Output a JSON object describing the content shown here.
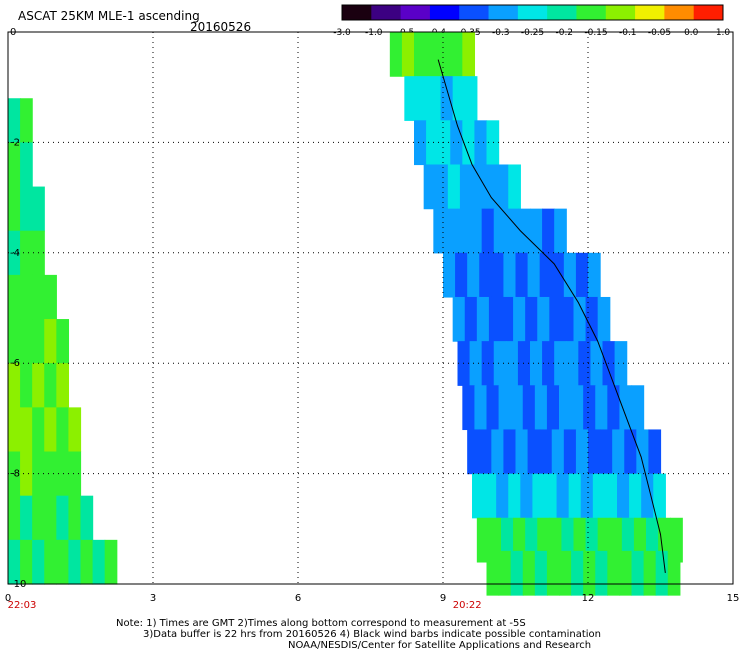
{
  "header": {
    "title": "ASCAT 25KM MLE-1 ascending",
    "date": "20160526"
  },
  "colorbar": {
    "labels": [
      "-3.0",
      "-1.0",
      "-0.5",
      "-0.4",
      "-0.35",
      "-0.3",
      "-0.25",
      "-0.2",
      "-0.15",
      "-0.1",
      "-0.05",
      "0.0",
      "1.0"
    ],
    "colors": [
      "#1a0010",
      "#3c0082",
      "#5a00c8",
      "#0000ff",
      "#0a50ff",
      "#0aa0ff",
      "#00e6e6",
      "#00e6a0",
      "#32f032",
      "#8cf000",
      "#f0f000",
      "#ff8c00",
      "#ff1e00"
    ]
  },
  "notes": {
    "line1": "Note: 1) Times are GMT 2)Times along bottom correspond to measurement at -5S",
    "line2": "3)Data buffer is 22 hrs from 20160526 4) Black wind barbs indicate possible contamination",
    "line3": "NOAA/NESDIS/Center for Satellite Applications and Research"
  },
  "chart_data": {
    "type": "heatmap",
    "title": "ASCAT 25KM MLE-1 ascending",
    "subtitle": "20160526",
    "xlim": [
      0,
      15
    ],
    "ylim": [
      -10,
      0
    ],
    "x_ticks": [
      "0",
      "3",
      "6",
      "9",
      "12",
      "15"
    ],
    "y_ticks": [
      "0",
      "-2",
      "-4",
      "-6",
      "-8",
      "-10"
    ],
    "time_labels": [
      {
        "x": 0,
        "label": "22:03"
      },
      {
        "x": 9.5,
        "label": "20:22"
      }
    ],
    "grid": true,
    "swaths": [
      {
        "name": "west",
        "rows": [
          {
            "y": -1.6,
            "x0": 0,
            "x1": 0.3,
            "v": -0.2
          },
          {
            "y": -2.4,
            "x0": 0,
            "x1": 0.45,
            "v": -0.2
          },
          {
            "y": -3.2,
            "x0": 0,
            "x1": 0.6,
            "v": -0.22
          },
          {
            "y": -4.0,
            "x0": 0,
            "x1": 0.75,
            "v": -0.2
          },
          {
            "y": -4.8,
            "x0": 0,
            "x1": 0.9,
            "v": -0.18
          },
          {
            "y": -5.6,
            "x0": 0,
            "x1": 1.05,
            "v": -0.17
          },
          {
            "y": -6.4,
            "x0": 0,
            "x1": 1.2,
            "v": -0.14
          },
          {
            "y": -7.2,
            "x0": 0,
            "x1": 1.35,
            "v": -0.15
          },
          {
            "y": -8.0,
            "x0": 0,
            "x1": 1.5,
            "v": -0.17
          },
          {
            "y": -8.8,
            "x0": 0,
            "x1": 1.7,
            "v": -0.2
          },
          {
            "y": -9.6,
            "x0": 0,
            "x1": 2.1,
            "v": -0.19
          }
        ]
      },
      {
        "name": "east",
        "rows": [
          {
            "y": -0.4,
            "x0": 7.9,
            "x1": 9.6,
            "v": -0.17
          },
          {
            "y": -1.2,
            "x0": 8.2,
            "x1": 9.7,
            "v": -0.28
          },
          {
            "y": -2.0,
            "x0": 8.4,
            "x1": 10.0,
            "v": -0.3
          },
          {
            "y": -2.8,
            "x0": 8.6,
            "x1": 10.6,
            "v": -0.32
          },
          {
            "y": -3.6,
            "x0": 8.8,
            "x1": 11.4,
            "v": -0.33
          },
          {
            "y": -4.4,
            "x0": 9.0,
            "x1": 12.1,
            "v": -0.36
          },
          {
            "y": -5.2,
            "x0": 9.2,
            "x1": 12.4,
            "v": -0.36
          },
          {
            "y": -6.0,
            "x0": 9.3,
            "x1": 12.8,
            "v": -0.34
          },
          {
            "y": -6.8,
            "x0": 9.4,
            "x1": 13.1,
            "v": -0.35
          },
          {
            "y": -7.6,
            "x0": 9.5,
            "x1": 13.4,
            "v": -0.36
          },
          {
            "y": -8.4,
            "x0": 9.6,
            "x1": 13.6,
            "v": -0.3
          },
          {
            "y": -9.2,
            "x0": 9.7,
            "x1": 13.8,
            "v": -0.2
          },
          {
            "y": -9.8,
            "x0": 9.9,
            "x1": 13.9,
            "v": -0.2
          }
        ]
      }
    ],
    "coastline": [
      [
        8.9,
        -0.5
      ],
      [
        9.1,
        -1.1
      ],
      [
        9.3,
        -1.7
      ],
      [
        9.6,
        -2.4
      ],
      [
        10.0,
        -3.0
      ],
      [
        10.6,
        -3.6
      ],
      [
        11.3,
        -4.2
      ],
      [
        11.8,
        -4.9
      ],
      [
        12.2,
        -5.6
      ],
      [
        12.5,
        -6.3
      ],
      [
        12.8,
        -7.0
      ],
      [
        13.1,
        -7.7
      ],
      [
        13.3,
        -8.4
      ],
      [
        13.5,
        -9.1
      ],
      [
        13.6,
        -9.8
      ]
    ]
  }
}
